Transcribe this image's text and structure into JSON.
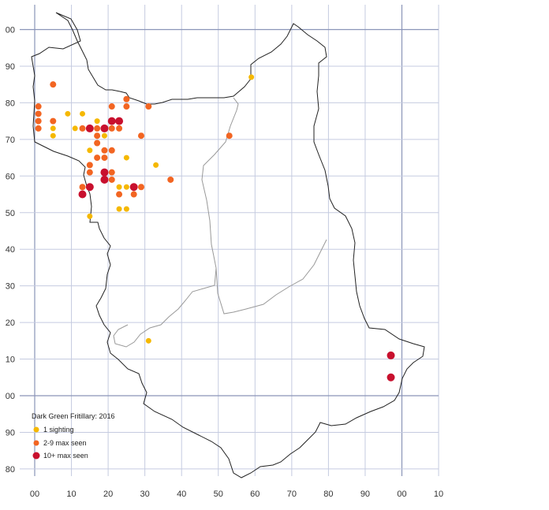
{
  "legend": {
    "title": "Dark Green Fritillary:  2016",
    "items": [
      {
        "label": "1 sighting",
        "color": "#f5b800"
      },
      {
        "label": "2-9 max seen",
        "color": "#f26522"
      },
      {
        "label": "10+ max seen",
        "color": "#c8102e"
      }
    ]
  },
  "grid": {
    "x_labels": [
      "00",
      "10",
      "20",
      "30",
      "40",
      "50",
      "60",
      "70",
      "80",
      "90",
      "00",
      "10"
    ],
    "y_labels": [
      "00",
      "90",
      "80",
      "70",
      "60",
      "50",
      "40",
      "30",
      "20",
      "10",
      "00",
      "90",
      "80"
    ],
    "grid_color": "#c5cbe0",
    "major_color": "#8a95b8"
  },
  "chart_data": {
    "type": "scatter",
    "xlabel": "",
    "ylabel": "",
    "xlim": [
      0,
      110
    ],
    "ylim": [
      -25,
      102
    ],
    "categories": [
      "1 sighting",
      "2-9 max seen",
      "10+ max seen"
    ],
    "series": [
      {
        "name": "1 sighting",
        "color": "#f5b800",
        "points": [
          [
            5,
            73
          ],
          [
            5,
            71
          ],
          [
            9,
            77
          ],
          [
            11,
            73
          ],
          [
            13,
            77
          ],
          [
            15,
            67
          ],
          [
            17,
            75
          ],
          [
            19,
            71
          ],
          [
            25,
            65
          ],
          [
            33,
            63
          ],
          [
            23,
            57
          ],
          [
            25,
            57
          ],
          [
            23,
            51
          ],
          [
            25,
            51
          ],
          [
            15,
            49
          ],
          [
            59,
            87
          ],
          [
            31,
            15
          ]
        ]
      },
      {
        "name": "2-9 max seen",
        "color": "#f26522",
        "points": [
          [
            1,
            79
          ],
          [
            1,
            77
          ],
          [
            1,
            75
          ],
          [
            1,
            73
          ],
          [
            5,
            85
          ],
          [
            5,
            75
          ],
          [
            13,
            73
          ],
          [
            17,
            73
          ],
          [
            17,
            71
          ],
          [
            17,
            69
          ],
          [
            19,
            67
          ],
          [
            17,
            65
          ],
          [
            19,
            65
          ],
          [
            15,
            63
          ],
          [
            15,
            61
          ],
          [
            21,
            67
          ],
          [
            21,
            61
          ],
          [
            21,
            59
          ],
          [
            21,
            79
          ],
          [
            21,
            73
          ],
          [
            23,
            73
          ],
          [
            25,
            81
          ],
          [
            25,
            79
          ],
          [
            29,
            71
          ],
          [
            31,
            79
          ],
          [
            13,
            57
          ],
          [
            23,
            55
          ],
          [
            27,
            55
          ],
          [
            29,
            57
          ],
          [
            37,
            59
          ],
          [
            53,
            71
          ]
        ]
      },
      {
        "name": "10+ max seen",
        "color": "#c8102e",
        "points": [
          [
            15,
            73
          ],
          [
            19,
            73
          ],
          [
            21,
            75
          ],
          [
            23,
            75
          ],
          [
            19,
            61
          ],
          [
            19,
            59
          ],
          [
            15,
            57
          ],
          [
            13,
            55
          ],
          [
            27,
            57
          ],
          [
            97,
            11
          ],
          [
            97,
            5
          ]
        ]
      }
    ]
  }
}
